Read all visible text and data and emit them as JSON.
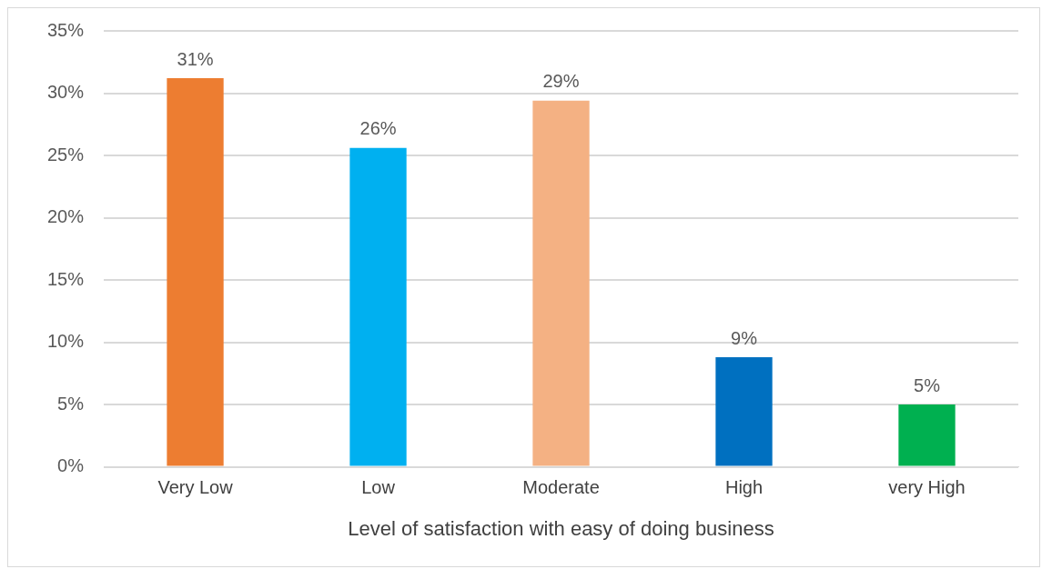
{
  "chart_data": {
    "type": "bar",
    "xlabel": "Level of satisfaction with easy of doing business",
    "categories": [
      "Very Low",
      "Low",
      "Moderate",
      "High",
      "very High"
    ],
    "values": [
      31.2,
      25.6,
      29.4,
      8.8,
      5.0
    ],
    "value_labels": [
      "31%",
      "26%",
      "29%",
      "9%",
      "5%"
    ],
    "colors": [
      "#ed7d31",
      "#00b0f0",
      "#f4b183",
      "#0070c0",
      "#00b050"
    ],
    "ylim": [
      0,
      35
    ],
    "yticks": [
      {
        "value": 0,
        "label": "0%"
      },
      {
        "value": 5,
        "label": "5%"
      },
      {
        "value": 10,
        "label": "10%"
      },
      {
        "value": 15,
        "label": "15%"
      },
      {
        "value": 20,
        "label": "20%"
      },
      {
        "value": 25,
        "label": "25%"
      },
      {
        "value": 30,
        "label": "30%"
      },
      {
        "value": 35,
        "label": "35%"
      }
    ],
    "grid": "y",
    "legend": false
  }
}
